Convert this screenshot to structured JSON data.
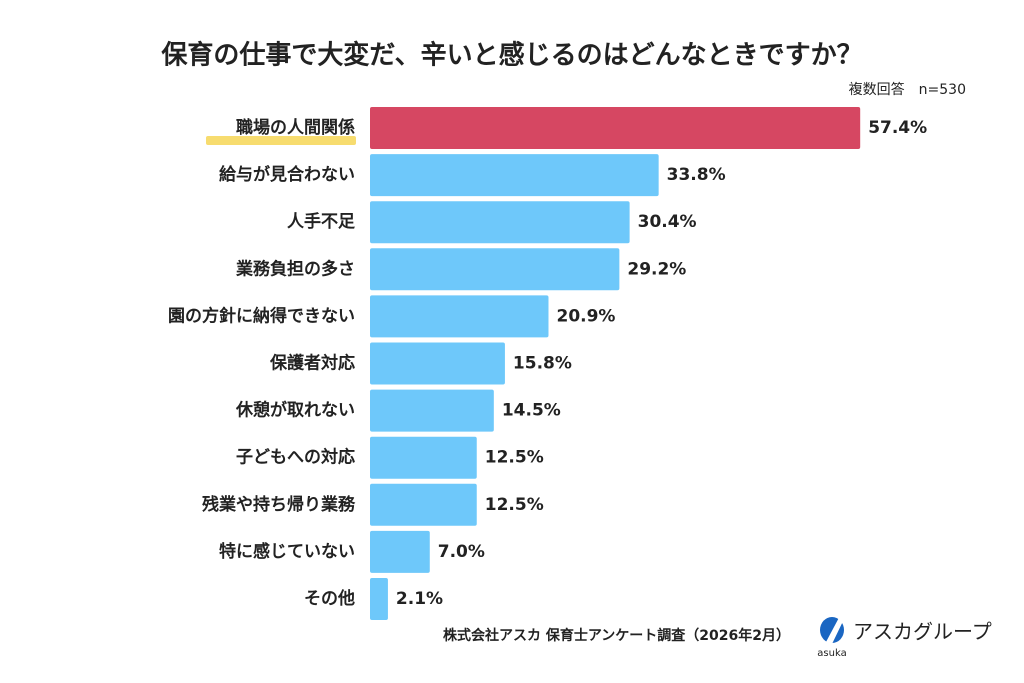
{
  "chart_data": {
    "type": "bar",
    "orientation": "horizontal",
    "title": "保育の仕事で大変だ、辛いと感じるのはどんなときですか？",
    "note": "複数回答　n=530",
    "categories": [
      "職場の人間関係",
      "給与が見合わない",
      "人手不足",
      "業務負担の多さ",
      "園の方針に納得できない",
      "保護者対応",
      "休憩が取れない",
      "子どもへの対応",
      "残業や持ち帰り業務",
      "特に感じていない",
      "その他"
    ],
    "values": [
      57.4,
      33.8,
      30.4,
      29.2,
      20.9,
      15.8,
      14.5,
      12.5,
      12.5,
      7.0,
      2.1
    ],
    "value_labels": [
      "57.4%",
      "33.8%",
      "30.4%",
      "29.2%",
      "20.9%",
      "15.8%",
      "14.5%",
      "12.5%",
      "12.5%",
      "7.0%",
      "2.1%"
    ],
    "colors": [
      "#d64762",
      "#6ec8fa",
      "#6ec8fa",
      "#6ec8fa",
      "#6ec8fa",
      "#6ec8fa",
      "#6ec8fa",
      "#6ec8fa",
      "#6ec8fa",
      "#6ec8fa",
      "#6ec8fa"
    ],
    "source": "株式会社アスカ 保育士アンケート調査（2026年2月）",
    "logo_text": "アスカグループ",
    "logo_sub": "asuka"
  }
}
